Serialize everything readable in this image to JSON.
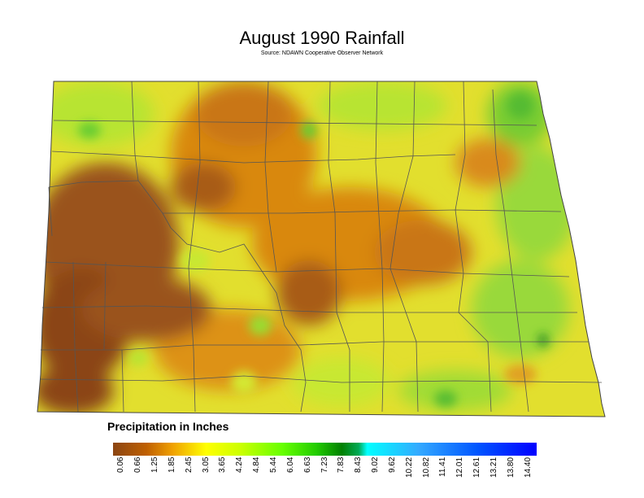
{
  "title": "August 1990 Rainfall",
  "subtitle": "Source: NDAWN Cooperative Observer Network",
  "legend": {
    "title": "Precipitation in Inches",
    "ticks": [
      "0.06",
      "0.66",
      "1.25",
      "1.85",
      "2.45",
      "3.05",
      "3.65",
      "4.24",
      "4.84",
      "5.44",
      "6.04",
      "6.63",
      "7.23",
      "7.83",
      "8.43",
      "9.02",
      "9.62",
      "10.22",
      "10.82",
      "11.41",
      "12.01",
      "12.61",
      "13.21",
      "13.80",
      "14.40"
    ],
    "colors": [
      "#8b4513",
      "#b85c00",
      "#e68a00",
      "#ffcc00",
      "#ffff00",
      "#d4ff00",
      "#99ff00",
      "#33cc00",
      "#008000",
      "#00ffff",
      "#33ccff",
      "#3399ff",
      "#0066ff",
      "#0000ff"
    ]
  },
  "map": {
    "region": "North Dakota",
    "colors": {
      "dry": "#8b4a1a",
      "orange": "#d97a10",
      "yellow": "#e8e030",
      "green": "#99dd33",
      "wet": "#2fa82f",
      "county_line": "#555555"
    }
  }
}
